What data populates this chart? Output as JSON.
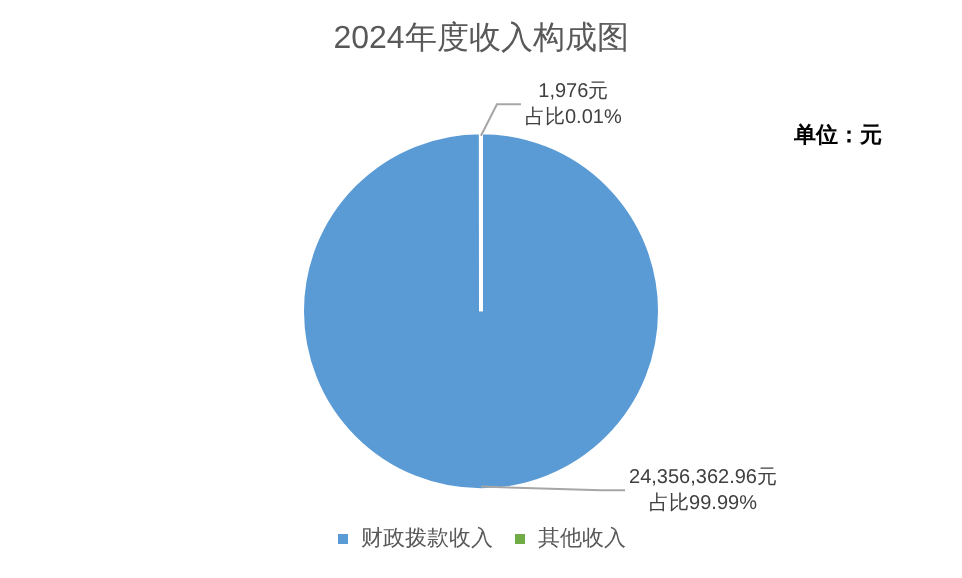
{
  "chart_data": {
    "type": "pie",
    "title": "2024年度收入构成图",
    "categories": [
      "财政拨款收入",
      "其他收入"
    ],
    "values": [
      24356362.96,
      1976
    ],
    "colors": [
      "#5b9bd5",
      "#70ad47"
    ],
    "value_labels": [
      "24,356,362.96元占比99.99%",
      "1,976元占比0.01%"
    ],
    "annotations": [
      "单位：元"
    ],
    "legend": "bottom"
  }
}
